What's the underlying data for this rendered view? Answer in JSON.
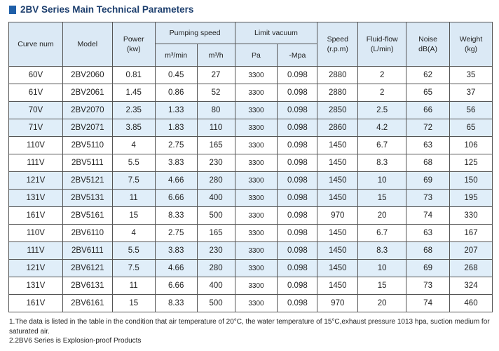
{
  "title": "2BV Series Main Technical Parameters",
  "colors": {
    "accent": "#1f5fa8",
    "header_bg": "#dbe9f5",
    "shaded_row": "#e0eef9"
  },
  "headers": {
    "curve_num": "Curve num",
    "model": "Model",
    "power": "Power",
    "power_unit": "(kw)",
    "pumping_speed": "Pumping speed",
    "m3min": "m³/min",
    "m3h": "m³/h",
    "limit_vacuum": "Limit vacuum",
    "pa": "Pa",
    "mpa": "-Mpa",
    "speed": "Speed",
    "speed_unit": "(r.p.m)",
    "fluid_flow": "Fluid-flow",
    "fluid_unit": "(L/min)",
    "noise": "Noise",
    "noise_unit": "dB(A)",
    "weight": "Weight",
    "weight_unit": "(kg)"
  },
  "rows": [
    [
      "60V",
      "2BV2060",
      "0.81",
      "0.45",
      "27",
      "3300",
      "0.098",
      "2880",
      "2",
      "62",
      "35"
    ],
    [
      "61V",
      "2BV2061",
      "1.45",
      "0.86",
      "52",
      "3300",
      "0.098",
      "2880",
      "2",
      "65",
      "37"
    ],
    [
      "70V",
      "2BV2070",
      "2.35",
      "1.33",
      "80",
      "3300",
      "0.098",
      "2850",
      "2.5",
      "66",
      "56"
    ],
    [
      "71V",
      "2BV2071",
      "3.85",
      "1.83",
      "110",
      "3300",
      "0.098",
      "2860",
      "4.2",
      "72",
      "65"
    ],
    [
      "110V",
      "2BV5110",
      "4",
      "2.75",
      "165",
      "3300",
      "0.098",
      "1450",
      "6.7",
      "63",
      "106"
    ],
    [
      "111V",
      "2BV5111",
      "5.5",
      "3.83",
      "230",
      "3300",
      "0.098",
      "1450",
      "8.3",
      "68",
      "125"
    ],
    [
      "121V",
      "2BV5121",
      "7.5",
      "4.66",
      "280",
      "3300",
      "0.098",
      "1450",
      "10",
      "69",
      "150"
    ],
    [
      "131V",
      "2BV5131",
      "11",
      "6.66",
      "400",
      "3300",
      "0.098",
      "1450",
      "15",
      "73",
      "195"
    ],
    [
      "161V",
      "2BV5161",
      "15",
      "8.33",
      "500",
      "3300",
      "0.098",
      "970",
      "20",
      "74",
      "330"
    ],
    [
      "110V",
      "2BV6110",
      "4",
      "2.75",
      "165",
      "3300",
      "0.098",
      "1450",
      "6.7",
      "63",
      "167"
    ],
    [
      "111V",
      "2BV6111",
      "5.5",
      "3.83",
      "230",
      "3300",
      "0.098",
      "1450",
      "8.3",
      "68",
      "207"
    ],
    [
      "121V",
      "2BV6121",
      "7.5",
      "4.66",
      "280",
      "3300",
      "0.098",
      "1450",
      "10",
      "69",
      "268"
    ],
    [
      "131V",
      "2BV6131",
      "11",
      "6.66",
      "400",
      "3300",
      "0.098",
      "1450",
      "15",
      "73",
      "324"
    ],
    [
      "161V",
      "2BV6161",
      "15",
      "8.33",
      "500",
      "3300",
      "0.098",
      "970",
      "20",
      "74",
      "460"
    ]
  ],
  "shaded_rows": [
    2,
    3,
    6,
    7,
    10,
    11
  ],
  "notes": [
    "1.The data is listed in the table in the condition that air temperature of 20°C, the water temperature of 15°C,exhaust pressure 1013 hpa, suction medium for saturated air.",
    "2.2BV6 Series is Explosion-proof Products"
  ]
}
